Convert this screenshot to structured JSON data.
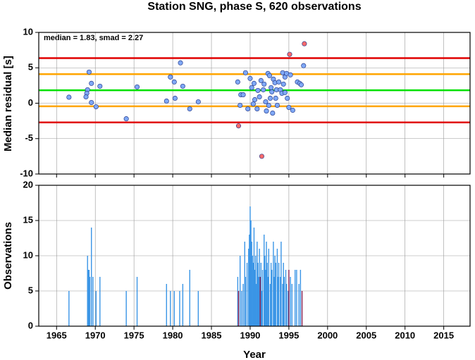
{
  "chart_data": [
    {
      "type": "scatter",
      "title": "Station SNG, phase S, 620 observations",
      "annotation": "median = 1.83, smad = 2.27",
      "ylabel": "Median residual [s]",
      "xlim": [
        1962.7,
        2018.4
      ],
      "ylim": [
        -10,
        10
      ],
      "xticks": [
        1965,
        1970,
        1975,
        1980,
        1985,
        1990,
        1995,
        2000,
        2005,
        2010,
        2015
      ],
      "yticks": [
        -10,
        -5,
        0,
        5,
        10
      ],
      "grid": true,
      "hlines": [
        {
          "value": 6.37,
          "color": "#e00000"
        },
        {
          "value": 4.1,
          "color": "#ffa500"
        },
        {
          "value": 1.83,
          "color": "#00e000"
        },
        {
          "value": -0.44,
          "color": "#ffa500"
        },
        {
          "value": -2.71,
          "color": "#e00000"
        }
      ],
      "series": [
        {
          "color": "#7fa8f5",
          "x": [
            1966.6,
            1969.2,
            1969.0,
            1968.9,
            1968.8,
            1969.5,
            1969.5,
            1970.1,
            1970.6,
            1974.0,
            1975.4,
            1979.2,
            1979.7,
            1980.2,
            1980.3,
            1981.0,
            1981.3,
            1982.2,
            1983.3,
            1988.4,
            1988.7,
            1988.8,
            1989.1,
            1989.4,
            1989.7,
            1990.0,
            1990.2,
            1990.4,
            1990.5,
            1990.6,
            1990.9,
            1991.0,
            1991.2,
            1991.4,
            1991.7,
            1991.8,
            1992.0,
            1992.1,
            1992.3,
            1992.4,
            1992.5,
            1992.6,
            1992.7,
            1992.8,
            1992.9,
            1993.0,
            1993.2,
            1993.3,
            1993.4,
            1993.5,
            1993.7,
            1993.9,
            1994.1,
            1994.2,
            1994.3,
            1994.5,
            1994.5,
            1994.7,
            1994.8,
            1995.0,
            1995.2,
            1995.5,
            1996.1,
            1996.4,
            1996.6,
            1996.9
          ],
          "values": [
            0.85,
            4.4,
            1.9,
            1.4,
            0.9,
            2.8,
            0.1,
            -0.5,
            2.4,
            -2.2,
            2.3,
            0.3,
            3.7,
            3.0,
            0.7,
            5.7,
            2.4,
            -0.8,
            0.2,
            3.0,
            -0.3,
            1.2,
            1.2,
            4.3,
            -0.8,
            3.5,
            2.2,
            -0.1,
            2.8,
            0.5,
            -0.8,
            1.8,
            0.9,
            3.2,
            1.9,
            2.7,
            0.2,
            -1.1,
            4.2,
            -0.3,
            3.9,
            0.7,
            2.2,
            1.6,
            -1.4,
            3.4,
            2.9,
            0.7,
            1.9,
            -0.3,
            3.0,
            1.9,
            1.4,
            4.3,
            2.7,
            3.7,
            1.5,
            4.2,
            0.7,
            -0.6,
            4.0,
            -1.0,
            3.0,
            2.8,
            2.6,
            5.3
          ]
        },
        {
          "color": "#ff6a6a",
          "x": [
            1988.5,
            1991.5,
            1995.1,
            1997.0
          ],
          "values": [
            -3.2,
            -7.5,
            6.9,
            8.4
          ]
        }
      ]
    },
    {
      "type": "bar",
      "ylabel": "Observations",
      "xlabel": "Year",
      "xlim": [
        1962.7,
        2018.4
      ],
      "ylim": [
        0,
        20
      ],
      "xticks": [
        1965,
        1970,
        1975,
        1980,
        1985,
        1990,
        1995,
        2000,
        2005,
        2010,
        2015
      ],
      "yticks": [
        0,
        5,
        10,
        15,
        20
      ],
      "grid": true,
      "series": [
        {
          "color": "#3a95e6",
          "x": [
            1966.6,
            1969.0,
            1969.1,
            1969.2,
            1969.3,
            1969.5,
            1969.7,
            1970.1,
            1970.6,
            1974.0,
            1975.4,
            1979.2,
            1979.7,
            1980.2,
            1980.9,
            1981.3,
            1982.2,
            1983.3,
            1988.4,
            1988.7,
            1988.9,
            1989.1,
            1989.3,
            1989.4,
            1989.6,
            1989.8,
            1989.9,
            1990.0,
            1990.1,
            1990.2,
            1990.3,
            1990.4,
            1990.5,
            1990.6,
            1990.7,
            1990.8,
            1990.9,
            1991.0,
            1991.1,
            1991.2,
            1991.4,
            1991.5,
            1991.6,
            1991.8,
            1991.9,
            1992.0,
            1992.1,
            1992.2,
            1992.3,
            1992.4,
            1992.6,
            1992.7,
            1992.8,
            1993.0,
            1993.1,
            1993.2,
            1993.3,
            1993.5,
            1993.6,
            1993.7,
            1993.9,
            1994.0,
            1994.2,
            1994.3,
            1994.4,
            1994.6,
            1994.7,
            1994.9,
            1995.2,
            1995.4,
            1995.8,
            1996.0,
            1996.3,
            1996.5
          ],
          "values": [
            5,
            10,
            8,
            8,
            7,
            14,
            7,
            5,
            7,
            5,
            7,
            6,
            5,
            5,
            5,
            6,
            8,
            5,
            7,
            10,
            5,
            6,
            12,
            7,
            9,
            11,
            13,
            17,
            15,
            12,
            10,
            9,
            14,
            8,
            10,
            6,
            12,
            9,
            7,
            11,
            9,
            5,
            8,
            13,
            10,
            8,
            12,
            9,
            7,
            11,
            6,
            9,
            8,
            12,
            7,
            10,
            9,
            11,
            7,
            9,
            7,
            12,
            6,
            9,
            7,
            8,
            6,
            5,
            7,
            6,
            8,
            8,
            6,
            8
          ]
        },
        {
          "color": "#8c1f4e",
          "x": [
            1988.5,
            1991.3,
            1995.0,
            1996.7
          ],
          "values": [
            5,
            7,
            8,
            5
          ]
        }
      ]
    }
  ]
}
